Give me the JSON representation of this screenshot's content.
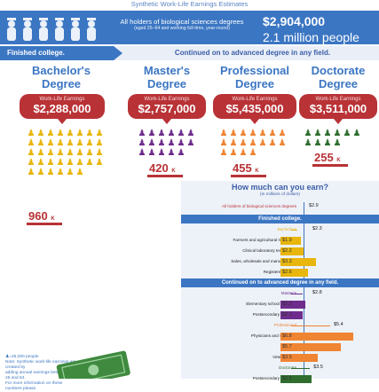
{
  "header": {
    "top_title": "Synthetic Work-Life Earnings Estimates",
    "description_line1": "All holders of biological sciences degrees",
    "description_line2": "(aged 25–64 and working full-time, year-round)",
    "total_earnings": "$2,904,000",
    "total_people": "2.1 million people"
  },
  "strip": {
    "left_label": "Finished college.",
    "right_label": "Continued on to advanced degree in any field."
  },
  "degrees": [
    {
      "name_line1": "Bachelor's",
      "name_line2": "Degree",
      "earnings_label": "Work-Life Earnings",
      "earnings": "$2,288,000",
      "count": "960",
      "unit": "K",
      "color": "#e8b60c"
    },
    {
      "name_line1": "Master's",
      "name_line2": "Degree",
      "earnings_label": "Work-Life Earnings",
      "earnings": "$2,757,000",
      "count": "420",
      "unit": "K",
      "color": "#6e2d8c"
    },
    {
      "name_line1": "Professional",
      "name_line2": "Degree",
      "earnings_label": "Work-Life Earnings",
      "earnings": "$5,435,000",
      "count": "455",
      "unit": "K",
      "color": "#ef8433"
    },
    {
      "name_line1": "Doctorate",
      "name_line2": "Degree",
      "earnings_label": "Work-Life Earnings",
      "earnings": "$3,511,000",
      "count": "255",
      "unit": "K",
      "color": "#2f6e2f"
    }
  ],
  "legend": {
    "icon_note": "=25,000 people",
    "note1": "Note: Synthetic work-life earnings are created by",
    "note2": "adding annual earnings between age 25 and 64.",
    "note3": "For more information on these numbers please"
  },
  "panel": {
    "title": "How much can you earn?",
    "subtitle": "(in millions of dollars)",
    "all_label": "All holders of biological sciences degrees",
    "all_value": "$2.9",
    "section_finished": "Finished college.",
    "section_advanced": "Continued on to advanced degree in any field."
  },
  "chart_data": {
    "type": "bar",
    "title": "How much can you earn?",
    "subtitle": "(in millions of dollars)",
    "reference": {
      "label": "All holders of biological sciences degrees",
      "value": 2.9
    },
    "rows": [
      {
        "label": "Bachelor's",
        "value": 2.3,
        "text": "$2.3",
        "kind": "summary",
        "color": "#e8b60c"
      },
      {
        "label": "Farmers and agricultural managers",
        "value": 1.9,
        "text": "$1.9",
        "kind": "bar",
        "color": "#e8b60c"
      },
      {
        "label": "Clinical laboratory technicians",
        "value": 2.2,
        "text": "$2.2",
        "kind": "bar",
        "color": "#e8b60c"
      },
      {
        "label": "Sales, wholesale and manufacturing",
        "value": 3.3,
        "text": "$3.3",
        "kind": "bar",
        "color": "#e8b60c"
      },
      {
        "label": "Registered nurses",
        "value": 2.6,
        "text": "$2.6",
        "kind": "bar",
        "color": "#e8b60c"
      },
      {
        "label": "Master's",
        "value": 2.8,
        "text": "$2.8",
        "kind": "summary",
        "color": "#6e2d8c"
      },
      {
        "label": "Elementary school teachers",
        "value": 2.3,
        "text": "$2.3",
        "kind": "bar",
        "color": "#6e2d8c"
      },
      {
        "label": "Postsecondary teachers",
        "value": 2.1,
        "text": "$2.1",
        "kind": "bar",
        "color": "#6e2d8c"
      },
      {
        "label": "Professional",
        "value": 5.4,
        "text": "$5.4",
        "kind": "summary",
        "color": "#ef8433"
      },
      {
        "label": "Physicians and surgeons",
        "value": 6.8,
        "text": "$6.8",
        "kind": "bar",
        "color": "#ef8433"
      },
      {
        "label": "Dentists",
        "value": 5.7,
        "text": "$5.7",
        "kind": "bar",
        "color": "#ef8433"
      },
      {
        "label": "Veterinarians",
        "value": 3.5,
        "text": "$3.5",
        "kind": "bar",
        "color": "#ef8433"
      },
      {
        "label": "Doctorate",
        "value": 3.5,
        "text": "$3.5",
        "kind": "summary",
        "color": "#2f6e2f"
      },
      {
        "label": "Postsecondary teachers",
        "value": 2.9,
        "text": "$2.9",
        "kind": "bar",
        "color": "#2f6e2f"
      }
    ]
  }
}
